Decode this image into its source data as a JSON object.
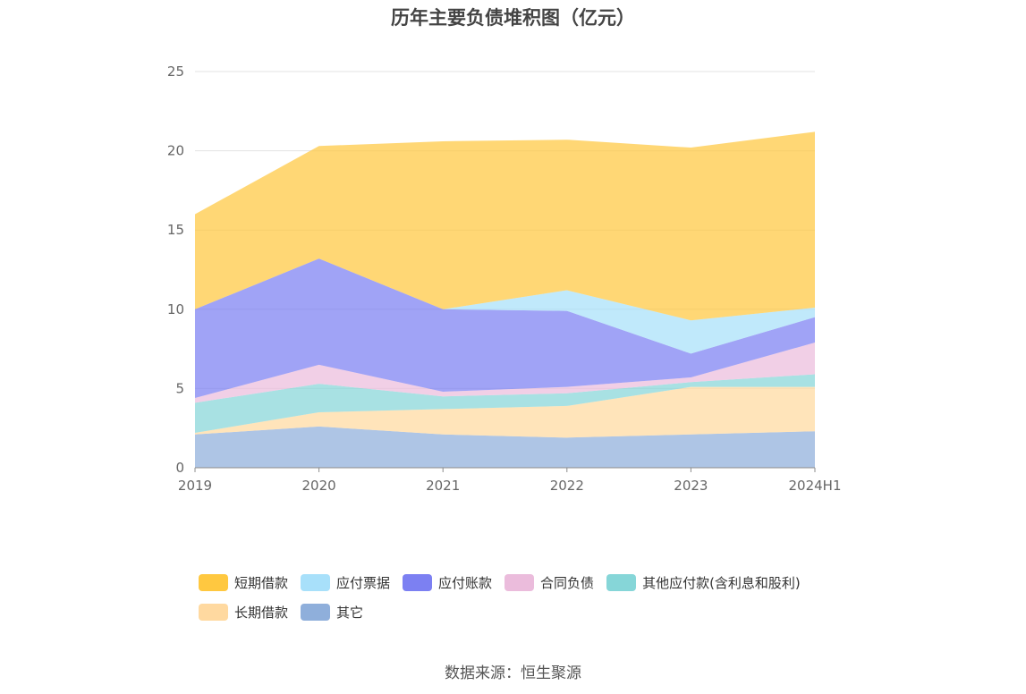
{
  "chart_data": {
    "type": "area",
    "stacked": true,
    "title": "历年主要负债堆积图（亿元）",
    "x": [
      "2019",
      "2020",
      "2021",
      "2022",
      "2023",
      "2024H1"
    ],
    "ylim": [
      0,
      25
    ],
    "yticks": [
      "0",
      "5",
      "10",
      "15",
      "20",
      "25"
    ],
    "grid": true,
    "legend_position": "bottom",
    "series": [
      {
        "name": "其它",
        "color": "#8fafdb",
        "values": [
          2.1,
          2.6,
          2.1,
          1.9,
          2.1,
          2.3
        ]
      },
      {
        "name": "长期借款",
        "color": "#ffd9a0",
        "values": [
          0.1,
          0.9,
          1.6,
          2.0,
          3.0,
          2.8
        ]
      },
      {
        "name": "其他应付款(含利息和股利)",
        "color": "#86d6d8",
        "values": [
          1.9,
          1.8,
          0.8,
          0.8,
          0.3,
          0.8
        ]
      },
      {
        "name": "合同负债",
        "color": "#ebbcdc",
        "values": [
          0.3,
          1.2,
          0.3,
          0.4,
          0.3,
          2.0
        ]
      },
      {
        "name": "应付账款",
        "color": "#7c80f2",
        "values": [
          5.6,
          6.7,
          5.2,
          4.8,
          1.5,
          1.6
        ]
      },
      {
        "name": "应付票据",
        "color": "#a8e0fa",
        "values": [
          0.0,
          0.0,
          0.0,
          1.3,
          2.1,
          0.6
        ]
      },
      {
        "name": "短期借款",
        "color": "#ffc840",
        "values": [
          6.0,
          7.1,
          10.6,
          9.5,
          10.9,
          11.1
        ]
      }
    ]
  },
  "legend": {
    "row1": [
      {
        "label": "短期借款",
        "color": "#ffc840"
      },
      {
        "label": "应付票据",
        "color": "#a8e0fa"
      },
      {
        "label": "应付账款",
        "color": "#7c80f2"
      },
      {
        "label": "合同负债",
        "color": "#ebbcdc"
      },
      {
        "label": "其他应付款(含利息和股利)",
        "color": "#86d6d8"
      }
    ],
    "row2": [
      {
        "label": "长期借款",
        "color": "#ffd9a0"
      },
      {
        "label": "其它",
        "color": "#8fafdb"
      }
    ]
  },
  "source": "数据来源：恒生聚源"
}
